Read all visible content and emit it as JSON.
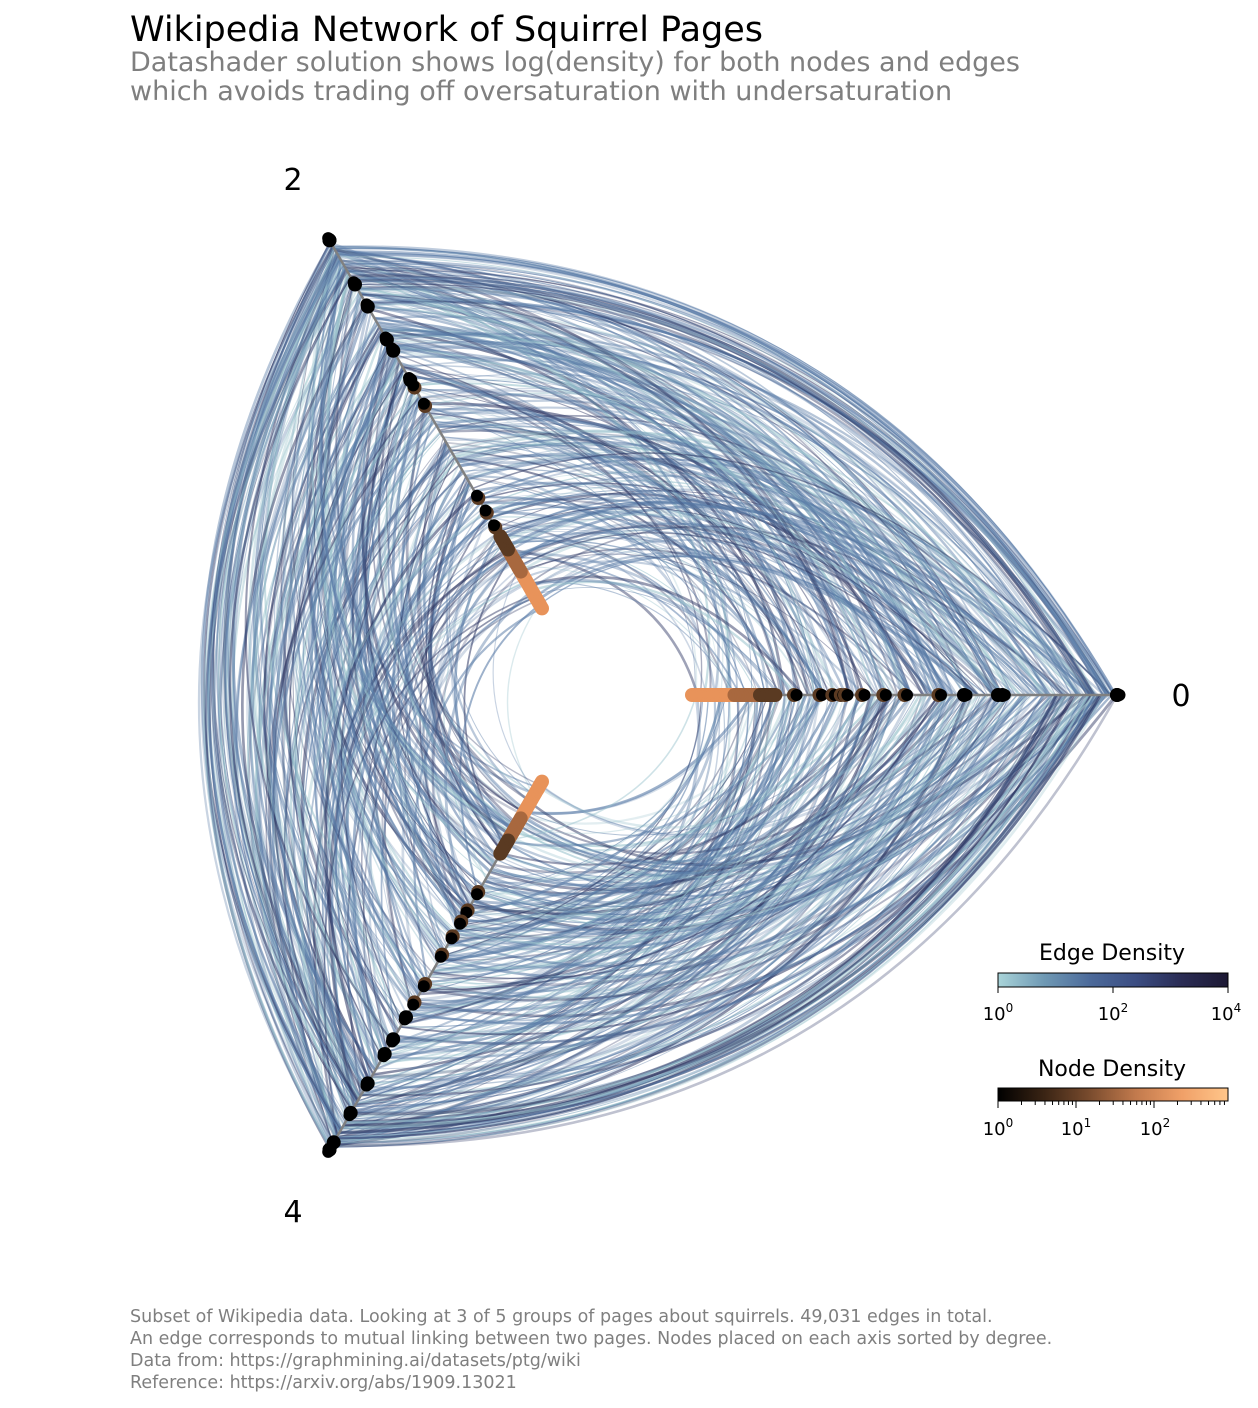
{
  "title": "Wikipedia Network of Squirrel Pages",
  "subtitle": [
    "Datashader solution shows log(density) for both nodes and edges",
    "which avoids trading off oversaturation with undersaturation"
  ],
  "axes": [
    {
      "label": "0",
      "angle_deg": 0
    },
    {
      "label": "2",
      "angle_deg": 120
    },
    {
      "label": "4",
      "angle_deg": 240
    }
  ],
  "legends": {
    "edge": {
      "title": "Edge Density",
      "ticks": [
        {
          "base": "10",
          "exp": "0"
        },
        {
          "base": "10",
          "exp": "2"
        },
        {
          "base": "10",
          "exp": "4"
        }
      ],
      "colors": [
        "#a9d4d9",
        "#6f99b4",
        "#4c6a9a",
        "#3b4d82",
        "#2a2c54",
        "#1c1833"
      ]
    },
    "node": {
      "title": "Node Density",
      "ticks": [
        {
          "base": "10",
          "exp": "0"
        },
        {
          "base": "10",
          "exp": "1"
        },
        {
          "base": "10",
          "exp": "2"
        }
      ],
      "colors": [
        "#000000",
        "#3a2414",
        "#7a4c2e",
        "#c27a4d",
        "#f0a068",
        "#ffc68a"
      ]
    }
  },
  "edge_colors": {
    "light": "#98c2cc",
    "mid": "#587aa6",
    "dark": "#2c3562"
  },
  "node_colors": {
    "black": "#000000",
    "brown": "#5a3a22",
    "orange": "#e8935a"
  },
  "footer": [
    "Subset of Wikipedia data. Looking at 3 of 5 groups of pages about squirrels. 49,031 edges in total.",
    "An edge corresponds to mutual linking between two pages. Nodes placed on each axis sorted by degree.",
    "Data from: https://graphmining.ai/datasets/ptg/wiki",
    "Reference: https://arxiv.org/abs/1909.13021"
  ]
}
